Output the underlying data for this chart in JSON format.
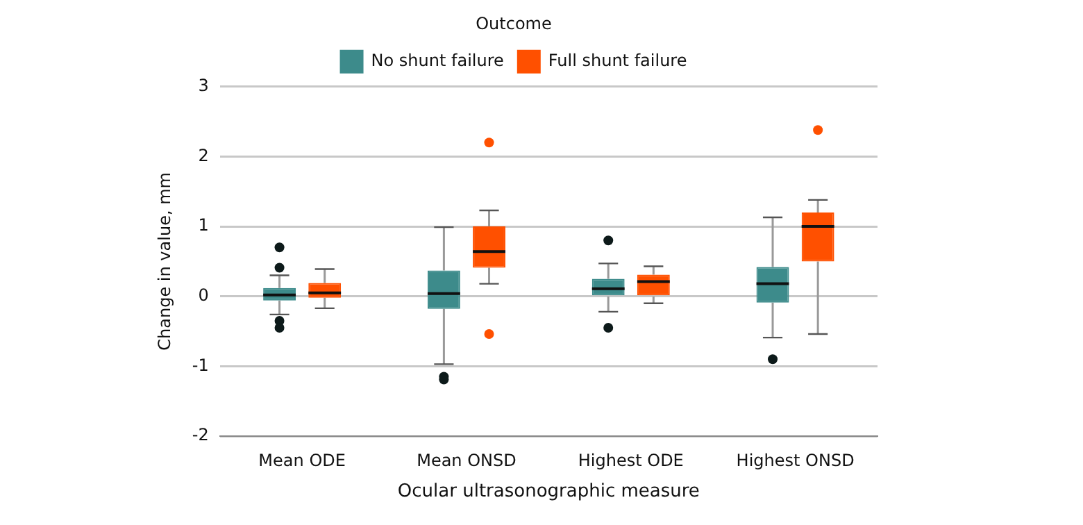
{
  "chart_data": {
    "type": "box",
    "xlabel": "Ocular ultrasonographic measure",
    "ylabel": "Change in value, mm",
    "legend_title": "Outcome",
    "legend": "top",
    "categories": [
      "Mean ODE",
      "Mean ONSD",
      "Highest ODE",
      "Highest ONSD"
    ],
    "ylim": [
      -2,
      3
    ],
    "yticks": [
      -2,
      -1,
      0,
      1,
      2,
      3
    ],
    "grid": "y",
    "series": [
      {
        "name": "No shunt failure",
        "color": "#3d8b8b",
        "boxes": [
          {
            "low": -0.26,
            "q1": -0.06,
            "median": 0.02,
            "q3": 0.12,
            "high": 0.3,
            "outliers": [
              0.7,
              0.41,
              -0.35,
              -0.45
            ]
          },
          {
            "low": -0.97,
            "q1": -0.18,
            "median": 0.04,
            "q3": 0.37,
            "high": 0.99,
            "outliers": [
              -1.15,
              -1.19
            ]
          },
          {
            "low": -0.22,
            "q1": 0.0,
            "median": 0.11,
            "q3": 0.25,
            "high": 0.47,
            "outliers": [
              0.8,
              -0.45
            ]
          },
          {
            "low": -0.59,
            "q1": -0.09,
            "median": 0.18,
            "q3": 0.42,
            "high": 1.13,
            "outliers": [
              -0.9
            ]
          }
        ]
      },
      {
        "name": "Full shunt failure",
        "color": "#ff5000",
        "boxes": [
          {
            "low": -0.17,
            "q1": -0.02,
            "median": 0.05,
            "q3": 0.19,
            "high": 0.39
          },
          {
            "low": 0.18,
            "q1": 0.41,
            "median": 0.64,
            "q3": 1.0,
            "high": 1.23,
            "outliers": [
              -0.54,
              2.2
            ]
          },
          {
            "low": -0.1,
            "q1": 0.0,
            "median": 0.21,
            "q3": 0.31,
            "high": 0.43
          },
          {
            "low": -0.54,
            "q1": 0.5,
            "median": 1.0,
            "q3": 1.2,
            "high": 1.38,
            "outliers": [
              2.38
            ]
          }
        ]
      }
    ]
  }
}
